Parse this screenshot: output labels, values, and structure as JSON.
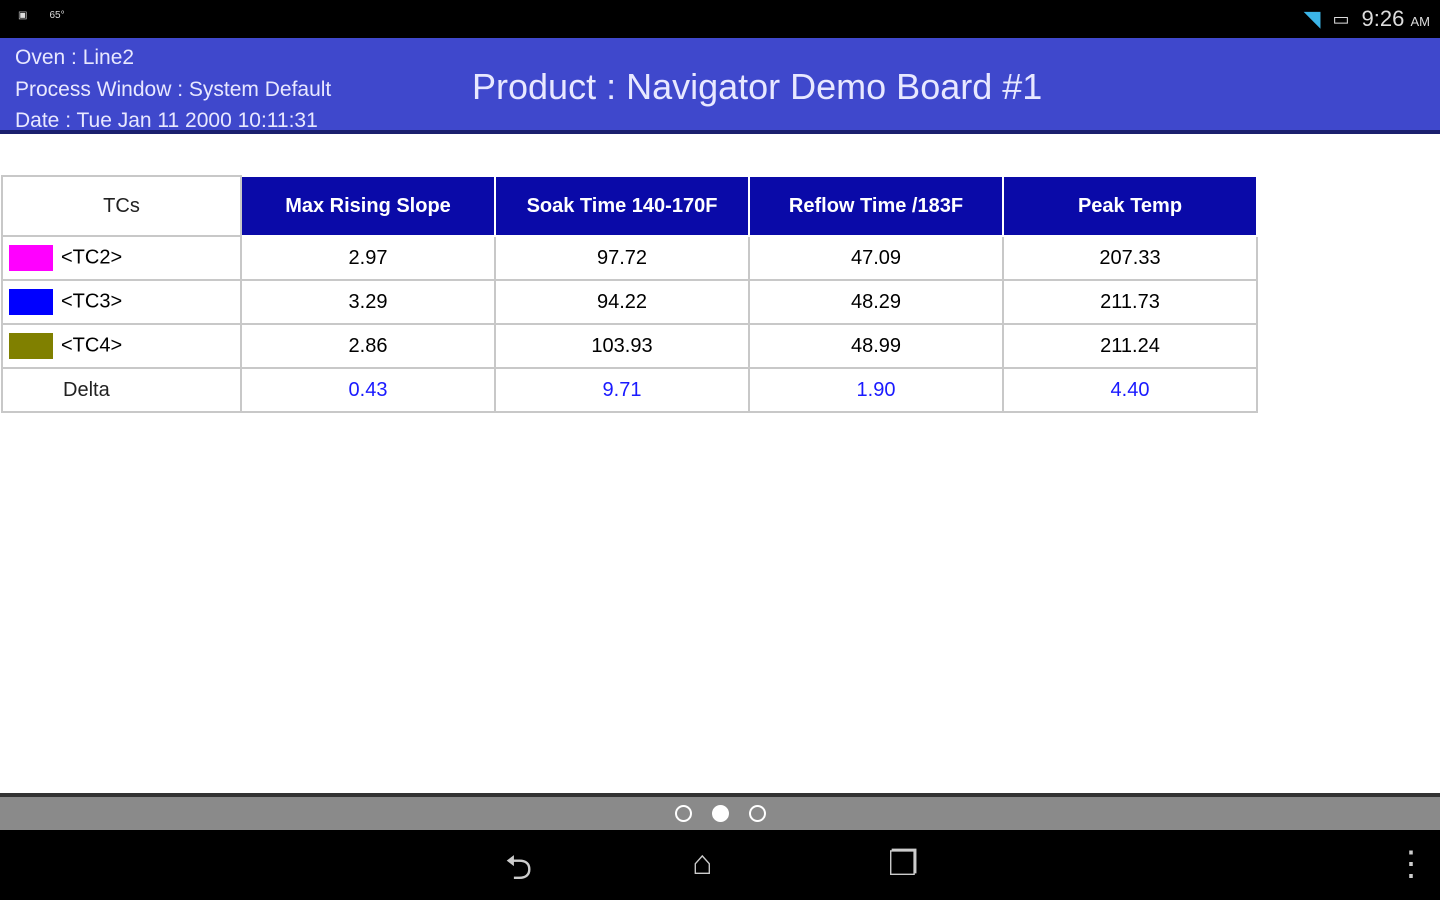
{
  "status_bar": {
    "time": "9:26",
    "ampm": "AM",
    "notif_text": "65°"
  },
  "header": {
    "oven": "Oven : Line2",
    "process_window": "Process Window : System Default",
    "date": "Date : Tue Jan 11 2000  10:11:31",
    "title": "Product : Navigator Demo Board #1"
  },
  "table": {
    "headers": [
      "TCs",
      "Max Rising Slope",
      "Soak Time 140-170F",
      "Reflow Time /183F",
      "Peak Temp"
    ],
    "rows": [
      {
        "tc": "<TC2>",
        "color": "#ff00ff",
        "values": [
          "2.97",
          "97.72",
          "47.09",
          "207.33"
        ]
      },
      {
        "tc": "<TC3>",
        "color": "#0000ff",
        "values": [
          "3.29",
          "94.22",
          "48.29",
          "211.73"
        ]
      },
      {
        "tc": "<TC4>",
        "color": "#808000",
        "values": [
          "2.86",
          "103.93",
          "48.99",
          "211.24"
        ]
      }
    ],
    "delta": {
      "label": "Delta",
      "values": [
        "0.43",
        "9.71",
        "1.90",
        "4.40"
      ]
    }
  },
  "pager": {
    "pages": 3,
    "current": 2
  }
}
